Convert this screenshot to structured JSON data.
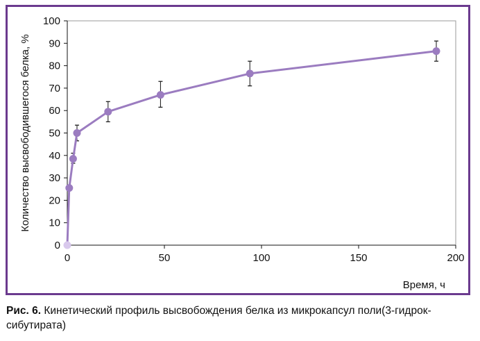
{
  "caption": {
    "label": "Рис. 6.",
    "text": " Кинетический профиль высвобождения белка из микрокапсул поли(3-гидрок-сибутирата)"
  },
  "chart_data": {
    "type": "line",
    "xlabel": "Время, ч",
    "ylabel": "Количество высвободившегося белка, %",
    "xlim": [
      0,
      200
    ],
    "ylim": [
      0,
      100
    ],
    "xticks": [
      0,
      50,
      100,
      150,
      200
    ],
    "yticks": [
      0,
      10,
      20,
      30,
      40,
      50,
      60,
      70,
      80,
      90,
      100
    ],
    "grid": false,
    "legend": "none",
    "series": [
      {
        "x": [
          0,
          1,
          3,
          5,
          21,
          48,
          94,
          190
        ],
        "values": [
          0,
          25.5,
          38.5,
          50,
          59.5,
          67,
          76.5,
          86.5
        ],
        "error_low": [
          0,
          24.5,
          36.5,
          46.5,
          55,
          61.5,
          71,
          82
        ],
        "error_high": [
          0,
          26,
          41,
          53.5,
          64,
          73,
          82,
          91
        ],
        "color": "#9b7cc0",
        "first_point_color": "#d8c8ec"
      }
    ]
  }
}
